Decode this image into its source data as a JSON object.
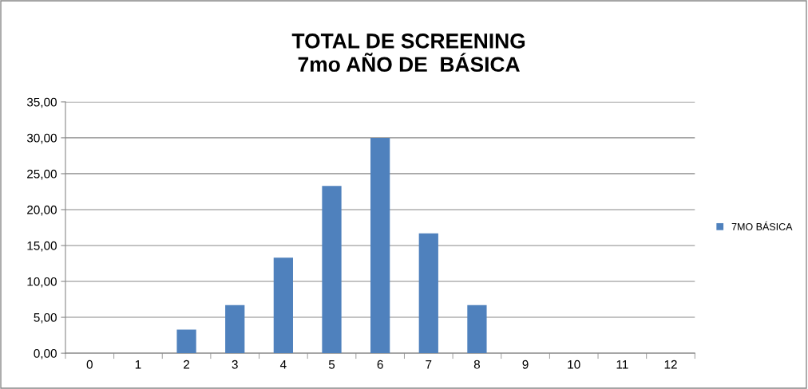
{
  "chart_data": {
    "type": "bar",
    "title": "TOTAL DE SCREENING\n7mo AÑO DE  BÁSICA",
    "categories": [
      "0",
      "1",
      "2",
      "3",
      "4",
      "5",
      "6",
      "7",
      "8",
      "9",
      "10",
      "11",
      "12"
    ],
    "series": [
      {
        "name": "7MO BÁSICA",
        "color": "#4f81bd",
        "values": [
          0,
          0,
          3.3,
          6.7,
          13.3,
          23.3,
          30,
          16.7,
          6.7,
          0,
          0,
          0,
          0
        ]
      }
    ],
    "ylim": [
      0,
      35
    ],
    "yticks": [
      {
        "value": 0,
        "label": "0,00"
      },
      {
        "value": 5,
        "label": "5,00"
      },
      {
        "value": 10,
        "label": "10,00"
      },
      {
        "value": 15,
        "label": "15,00"
      },
      {
        "value": 20,
        "label": "20,00"
      },
      {
        "value": 25,
        "label": "25,00"
      },
      {
        "value": 30,
        "label": "30,00"
      },
      {
        "value": 35,
        "label": "35,00"
      }
    ],
    "grid": "y",
    "legend": "right"
  }
}
